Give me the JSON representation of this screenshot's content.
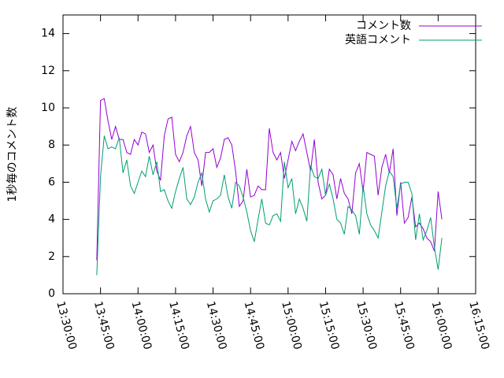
{
  "chart_data": {
    "type": "line",
    "y_label": "1秒毎のコメント数",
    "x": [
      "13:43:30",
      "13:45:00",
      "13:46:30",
      "13:48:00",
      "13:49:30",
      "13:51:00",
      "13:52:30",
      "13:54:00",
      "13:55:30",
      "13:57:00",
      "13:58:30",
      "14:00:00",
      "14:01:30",
      "14:03:00",
      "14:04:30",
      "14:06:00",
      "14:07:30",
      "14:09:00",
      "14:10:30",
      "14:12:00",
      "14:13:30",
      "14:15:00",
      "14:16:30",
      "14:18:00",
      "14:19:30",
      "14:21:00",
      "14:22:30",
      "14:24:00",
      "14:25:30",
      "14:27:00",
      "14:28:30",
      "14:30:00",
      "14:31:30",
      "14:33:00",
      "14:34:30",
      "14:36:00",
      "14:37:30",
      "14:39:00",
      "14:40:30",
      "14:42:00",
      "14:43:30",
      "14:45:00",
      "14:46:30",
      "14:48:00",
      "14:49:30",
      "14:51:00",
      "14:52:30",
      "14:54:00",
      "14:55:30",
      "14:57:00",
      "14:58:30",
      "15:00:00",
      "15:01:30",
      "15:03:00",
      "15:04:30",
      "15:06:00",
      "15:07:30",
      "15:09:00",
      "15:10:30",
      "15:12:00",
      "15:13:30",
      "15:15:00",
      "15:16:30",
      "15:18:00",
      "15:19:30",
      "15:21:00",
      "15:22:30",
      "15:24:00",
      "15:25:30",
      "15:27:00",
      "15:28:30",
      "15:30:00",
      "15:31:30",
      "15:33:00",
      "15:34:30",
      "15:36:00",
      "15:37:30",
      "15:39:00",
      "15:40:30",
      "15:42:00",
      "15:43:30",
      "15:45:00",
      "15:46:30",
      "15:48:00",
      "15:49:30",
      "15:51:00",
      "15:52:30",
      "15:54:00",
      "15:55:30",
      "15:57:00",
      "15:58:30",
      "16:00:00",
      "16:01:30"
    ],
    "series": [
      {
        "name": "コメント数",
        "color": "#9400d3",
        "values": [
          1.8,
          10.4,
          10.5,
          9.3,
          8.3,
          9.0,
          8.3,
          8.3,
          7.6,
          7.5,
          8.3,
          8.0,
          8.7,
          8.6,
          7.6,
          8.0,
          6.6,
          6.1,
          8.5,
          9.4,
          9.5,
          7.5,
          7.1,
          7.6,
          8.5,
          9.0,
          7.6,
          7.2,
          5.8,
          7.6,
          7.6,
          7.8,
          6.8,
          7.3,
          8.3,
          8.4,
          8.0,
          6.6,
          4.7,
          5.0,
          6.7,
          5.2,
          5.3,
          5.8,
          5.6,
          5.6,
          8.9,
          7.6,
          7.2,
          7.6,
          6.2,
          7.2,
          8.2,
          7.7,
          8.2,
          8.6,
          7.6,
          6.6,
          8.3,
          6.0,
          5.1,
          5.3,
          6.7,
          6.4,
          5.1,
          6.2,
          5.4,
          5.1,
          4.3,
          6.5,
          7.0,
          5.5,
          7.6,
          7.5,
          7.4,
          5.3,
          6.8,
          7.5,
          6.5,
          7.8,
          4.2,
          6.0,
          3.8,
          4.1,
          5.2,
          3.6,
          3.8,
          3.5,
          3.0,
          2.8,
          2.3,
          5.5,
          4.0
        ]
      },
      {
        "name": "英語コメント",
        "color": "#009e73",
        "values": [
          1.0,
          6.3,
          8.5,
          7.8,
          7.9,
          7.8,
          8.4,
          6.5,
          7.2,
          5.8,
          5.4,
          6.0,
          6.6,
          6.3,
          7.4,
          6.4,
          7.1,
          5.5,
          5.6,
          5.0,
          4.6,
          5.5,
          6.2,
          6.8,
          5.1,
          4.8,
          5.2,
          6.0,
          6.5,
          5.1,
          4.4,
          5.0,
          5.1,
          5.3,
          6.4,
          5.2,
          4.6,
          6.0,
          5.8,
          5.2,
          4.4,
          3.4,
          2.8,
          4.0,
          5.1,
          3.8,
          3.7,
          4.2,
          4.3,
          3.9,
          7.1,
          5.7,
          6.2,
          4.3,
          5.1,
          4.6,
          3.9,
          6.9,
          6.3,
          6.2,
          6.7,
          5.3,
          5.9,
          5.1,
          4.0,
          3.8,
          3.2,
          4.7,
          4.5,
          4.2,
          3.2,
          5.8,
          4.3,
          3.7,
          3.4,
          3.0,
          4.4,
          5.8,
          6.6,
          6.3,
          4.6,
          5.9,
          6.0,
          6.0,
          5.4,
          2.9,
          4.3,
          2.9,
          3.4,
          4.1,
          2.5,
          1.3,
          3.0
        ]
      }
    ],
    "xlim": [
      "13:30:00",
      "16:15:00"
    ],
    "xticks": [
      "13:30:00",
      "13:45:00",
      "14:00:00",
      "14:15:00",
      "14:30:00",
      "14:45:00",
      "15:00:00",
      "15:15:00",
      "15:30:00",
      "15:45:00",
      "16:00:00",
      "16:15:00"
    ],
    "ylim": [
      0,
      15
    ],
    "yticks": [
      0,
      2,
      4,
      6,
      8,
      10,
      12,
      14
    ],
    "legend": "top-right"
  }
}
